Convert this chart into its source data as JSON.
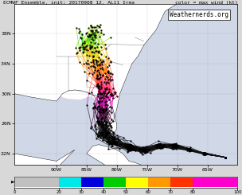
{
  "title": "ECMWF Ensemble, init: 20170908 12, AL11 Irma",
  "colorbar_label": "color = max wind (kt)",
  "watermark": "Weathernerds.org",
  "xlim": [
    -97,
    -60
  ],
  "ylim": [
    20.5,
    42
  ],
  "xticks_vals": [
    -90,
    -85,
    -80,
    -75,
    -70,
    -65
  ],
  "xticks_labels": [
    "90W",
    "85W",
    "80W",
    "75W",
    "70W",
    "65W"
  ],
  "yticks_vals": [
    22,
    26,
    30,
    34,
    38
  ],
  "yticks_labels": [
    "22N",
    "26N",
    "30N",
    "34N",
    "38N"
  ],
  "colorbar_ticks": [
    0,
    20,
    30,
    40,
    50,
    60,
    70,
    80,
    100
  ],
  "colorbar_colors": [
    "#c0c0c0",
    "#00e8e8",
    "#0000dd",
    "#00cc00",
    "#ffff00",
    "#ff9900",
    "#ff3300",
    "#ff00cc",
    "#111111"
  ],
  "n_tracks": 51,
  "bg_color": "#d8d8d8",
  "map_bg": "#d0d8e8",
  "land_color": "#ffffff",
  "seed": 42
}
